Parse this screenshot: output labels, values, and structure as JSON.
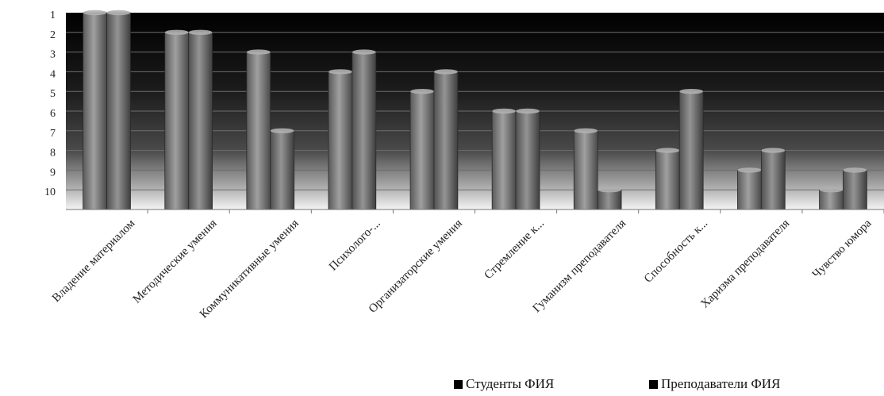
{
  "chart_data": {
    "type": "bar",
    "orientation": "vertical",
    "y_axis_inverted": true,
    "ylim": [
      1,
      11
    ],
    "y_ticks": [
      "1",
      "2",
      "3",
      "4",
      "5",
      "6",
      "7",
      "8",
      "9",
      "10"
    ],
    "grid": true,
    "legend_position": "bottom-right",
    "categories": [
      "Владение материалом",
      "Методические умения",
      "Коммуникативные умения",
      "Психолого-...",
      "Организаторские умения",
      "Стремление к...",
      "Гуманизм преподавателя",
      "Способность к...",
      "Харизма преподавателя",
      "Чувство юмора"
    ],
    "series": [
      {
        "name": "Студенты ФИЯ",
        "values": [
          1,
          2,
          3,
          4,
          5,
          6,
          7,
          8,
          9,
          10
        ]
      },
      {
        "name": "Преподаватели ФИЯ",
        "values": [
          1,
          2,
          7,
          3,
          4,
          6,
          10,
          5,
          8,
          9
        ]
      }
    ]
  }
}
